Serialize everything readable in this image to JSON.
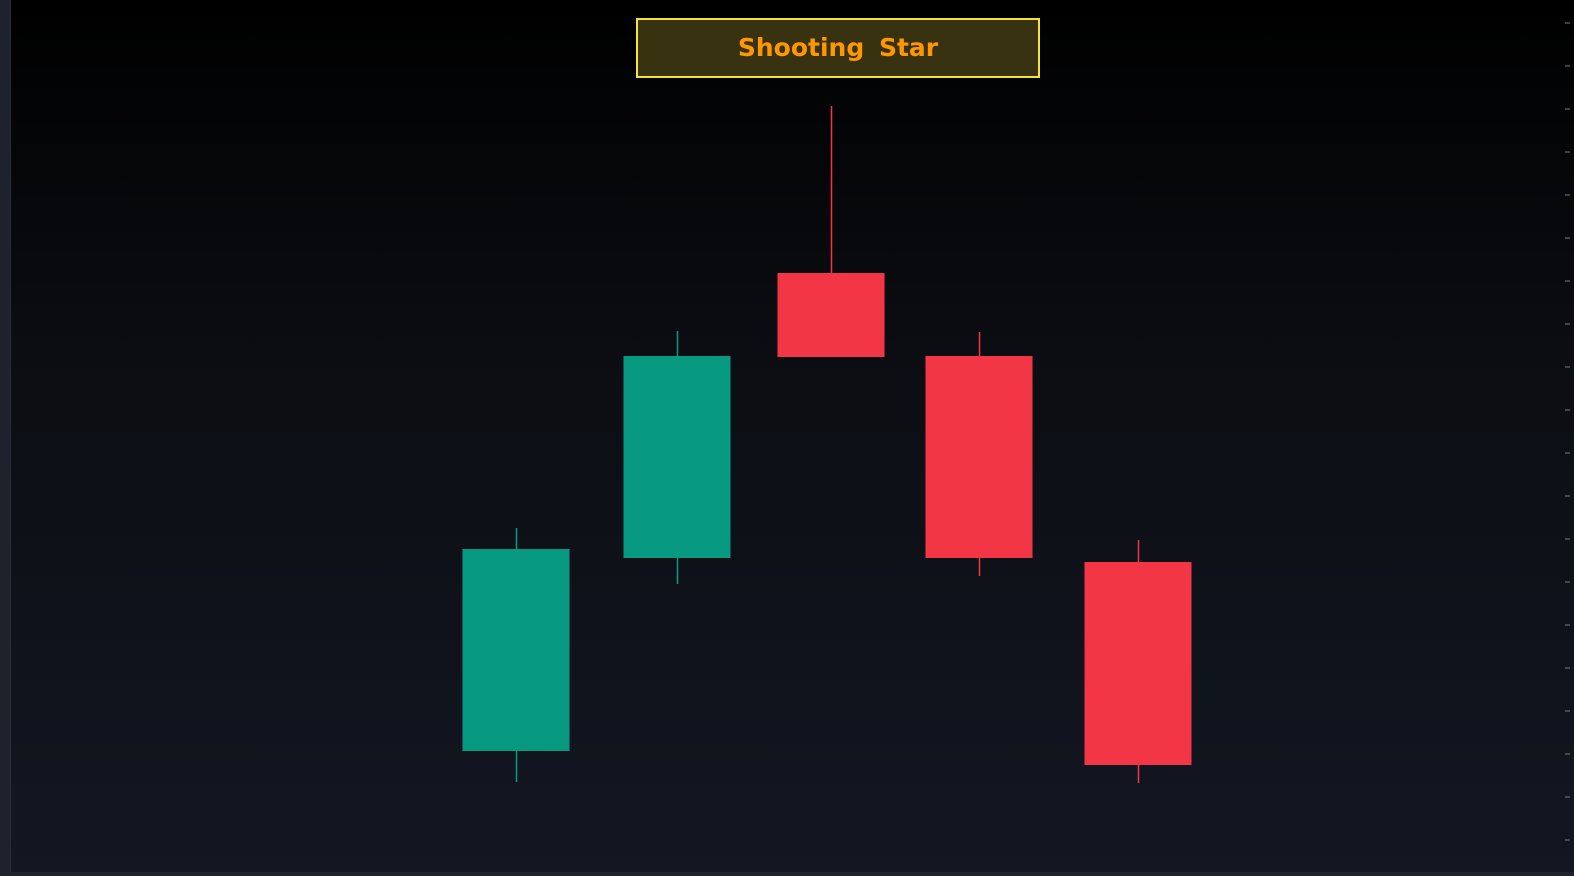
{
  "chart_data": {
    "type": "candlestick",
    "title": "Shooting Star",
    "colors": {
      "up": "#089981",
      "down": "#f23645",
      "title_text": "#ff9800",
      "title_border": "#f5e33a",
      "title_bg": "#383210"
    },
    "grid": false,
    "candles": [
      {
        "open": 12.5,
        "high": 34.8,
        "low": 9.4,
        "close": 32.7
      },
      {
        "open": 31.8,
        "high": 54.5,
        "low": 29.2,
        "close": 52.0
      },
      {
        "open": 60.3,
        "high": 77.0,
        "low": 51.9,
        "close": 51.9
      },
      {
        "open": 52.0,
        "high": 54.4,
        "low": 30.0,
        "close": 31.8
      },
      {
        "open": 31.4,
        "high": 33.6,
        "low": 9.3,
        "close": 11.1
      }
    ]
  }
}
